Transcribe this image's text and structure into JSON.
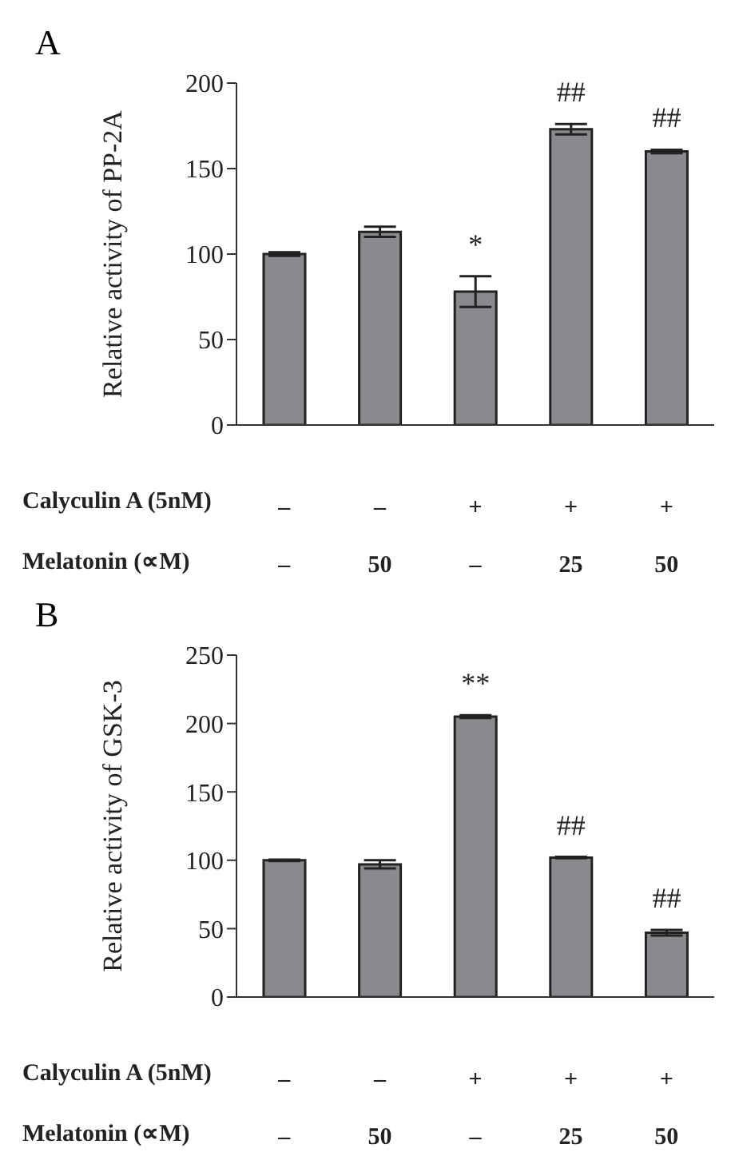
{
  "chart_data": [
    {
      "type": "bar",
      "title": "A",
      "ylabel": "Relative activity of PP-2A",
      "categories": [
        "–\n–",
        "–\n50",
        "+\n–",
        "+\n25",
        "+\n50"
      ],
      "values": [
        100,
        113,
        78,
        173,
        160
      ],
      "errors": [
        1,
        3,
        9,
        3,
        1
      ],
      "color": "#8a8a8e",
      "ylim": [
        0,
        200
      ],
      "yticks": [
        0,
        50,
        100,
        150,
        200
      ],
      "value_labels": [
        null,
        null,
        "*",
        "##",
        "##"
      ],
      "annotations": [
        "Calyculin A (5nM)",
        "Melatonin (∝M)"
      ]
    },
    {
      "type": "bar",
      "title": "B",
      "ylabel": "Relative activity of  GSK-3",
      "categories": [
        "–\n–",
        "–\n50",
        "+\n–",
        "+\n25",
        "+\n50"
      ],
      "values": [
        100,
        97,
        205,
        102,
        47
      ],
      "errors": [
        0.5,
        3,
        1,
        0.5,
        2
      ],
      "color": "#8a8a8e",
      "ylim": [
        0,
        250
      ],
      "yticks": [
        0,
        50,
        100,
        150,
        200,
        250
      ],
      "value_labels": [
        null,
        null,
        "**",
        "##",
        "##"
      ],
      "annotations": [
        "Calyculin A (5nM)",
        "Melatonin (∝M)"
      ]
    }
  ]
}
